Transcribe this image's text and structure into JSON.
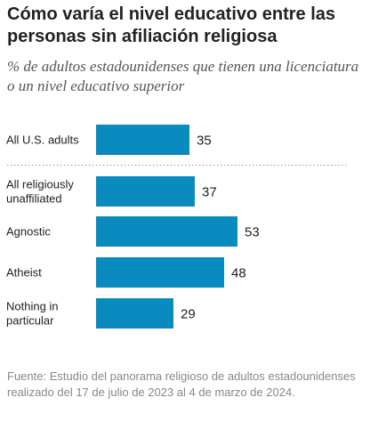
{
  "header": {
    "title": "Cómo varía el nivel educativo entre las personas sin afiliación religiosa",
    "subtitle": "% de adultos estadounidenses que tienen una licenciatura o un nivel educativo superior"
  },
  "footer": {
    "source": "Fuente: Estudio del panorama religioso de adultos estadounidenses realizado del 17 de julio de 2023 al 4 de marzo de 2024."
  },
  "colors": {
    "bar": "#0a8bbf",
    "divider": "#999999"
  },
  "chart_data": {
    "type": "bar",
    "orientation": "horizontal",
    "categories": [
      [
        "All U.S. adults"
      ],
      [
        "All religiously",
        "unaffiliated"
      ],
      [
        "Agnostic"
      ],
      [
        "Atheist"
      ],
      [
        "Nothing in",
        "particular"
      ]
    ],
    "values": [
      35,
      37,
      53,
      48,
      29
    ],
    "title": "",
    "xlabel": "",
    "ylabel": "",
    "xlim": [
      0,
      100
    ],
    "grid": false,
    "legend": "none"
  }
}
